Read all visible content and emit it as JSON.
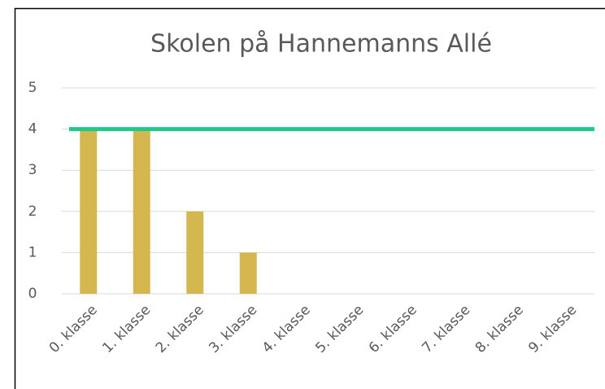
{
  "chart_data": {
    "type": "bar",
    "title": "Skolen på Hannemanns Allé",
    "categories": [
      "0. klasse",
      "1. klasse",
      "2. klasse",
      "3. klasse",
      "4. klasse",
      "5. klasse",
      "6. klasse",
      "7. klasse",
      "8. klasse",
      "9. klasse"
    ],
    "values": [
      4,
      4,
      2,
      1,
      0,
      0,
      0,
      0,
      0,
      0
    ],
    "color": "#d4b84f",
    "reference_line": {
      "value": 4,
      "color": "#1ec98a"
    },
    "ylim": [
      0,
      5
    ],
    "yticks": [
      0,
      1,
      2,
      3,
      4,
      5
    ],
    "grid": true
  }
}
